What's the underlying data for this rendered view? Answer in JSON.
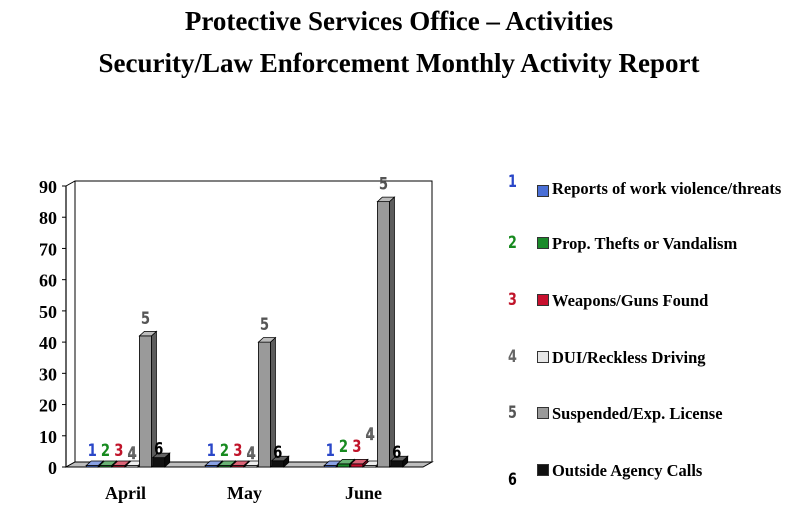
{
  "title_line1": "Protective Services Office – Activities",
  "title_line2": "Security/Law Enforcement Monthly Activity Report",
  "chart_data": {
    "type": "bar",
    "categories": [
      "April",
      "May",
      "June"
    ],
    "series": [
      {
        "marker": "1",
        "name": "Reports of work violence/threats",
        "color": "#4a6fd6",
        "marker_color": "#2a47c8",
        "values": [
          0,
          0,
          0
        ]
      },
      {
        "marker": "2",
        "name": "Prop. Thefts or Vandalism",
        "color": "#1a8a2a",
        "marker_color": "#178a1f",
        "values": [
          0,
          0,
          1
        ]
      },
      {
        "marker": "3",
        "name": "Weapons/Guns Found",
        "color": "#c8102e",
        "marker_color": "#c0142a",
        "values": [
          0,
          0,
          1
        ]
      },
      {
        "marker": "4",
        "name": "DUI/Reckless Driving",
        "color": "#e6e6e6",
        "marker_color": "#666666",
        "values": [
          0,
          0,
          0
        ]
      },
      {
        "marker": "5",
        "name": "Suspended/Exp. License",
        "color": "#9a9a9a",
        "marker_color": "#555555",
        "values": [
          42,
          40,
          85
        ]
      },
      {
        "marker": "6",
        "name": "Outside Agency Calls",
        "color": "#111111",
        "marker_color": "#000000",
        "values": [
          3,
          2,
          2
        ]
      }
    ],
    "y_ticks": [
      "0",
      "10",
      "20",
      "30",
      "40",
      "50",
      "60",
      "70",
      "80",
      "90"
    ],
    "ylim": [
      0,
      90
    ],
    "grid": false,
    "legend_position": "right"
  }
}
